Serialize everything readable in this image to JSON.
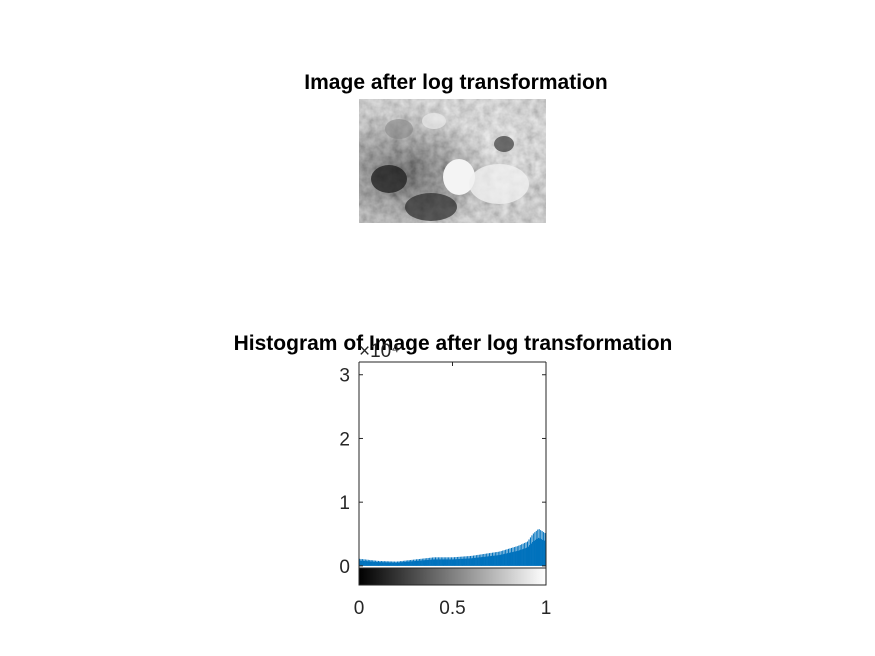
{
  "figure": {
    "top_title": "Image after log transformation",
    "bottom_title": "Histogram of Image after log transformation"
  },
  "colors": {
    "bar": "#0072BD",
    "axis": "#262626",
    "background": "#ffffff"
  },
  "chart_data": {
    "type": "bar",
    "title": "Histogram of Image after log transformation",
    "xlabel": "",
    "ylabel": "",
    "xlim": [
      0,
      1
    ],
    "ylim": [
      -0.3,
      3.2
    ],
    "y_exponent_label": "×10⁴",
    "x_ticks": [
      "0",
      "0.5",
      "1"
    ],
    "y_ticks": [
      "0",
      "1",
      "2",
      "3"
    ],
    "grid": false,
    "colorbar": "grayscale gradient from black (0) to white (1) below the histogram",
    "bins": 256,
    "series": [
      {
        "x": [
          0,
          0.1,
          0.2,
          0.3,
          0.4,
          0.5,
          0.6,
          0.65,
          0.7,
          0.75,
          0.8,
          0.85,
          0.9,
          0.93,
          0.96,
          1.0
        ],
        "values": [
          0.1,
          0.07,
          0.06,
          0.09,
          0.12,
          0.12,
          0.14,
          0.16,
          0.18,
          0.2,
          0.24,
          0.28,
          0.34,
          0.45,
          0.52,
          0.45
        ]
      }
    ]
  }
}
